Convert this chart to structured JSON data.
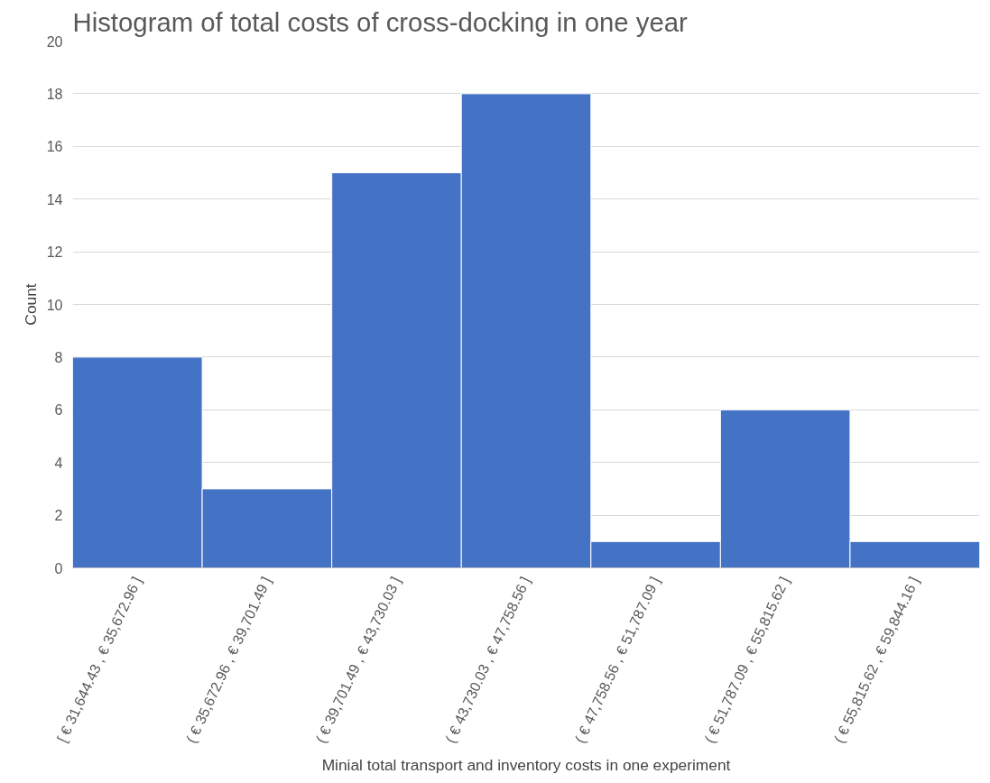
{
  "chart_data": {
    "type": "bar",
    "title": "Histogram of total costs of cross-docking in one year",
    "xlabel": "Minial total transport and inventory costs in one experiment",
    "ylabel": "Count",
    "categories": [
      "[ € 31,644.43 , € 35,672.96 ]",
      "( € 35,672.96 , € 39,701.49 ]",
      "( € 39,701.49 , € 43,730.03 ]",
      "( € 43,730.03 , € 47,758.56 ]",
      "( € 47,758.56 , € 51,787.09 ]",
      "( € 51,787.09 , € 55,815.62 ]",
      "( € 55,815.62 , € 59,844.16 ]"
    ],
    "values": [
      8,
      3,
      15,
      18,
      1,
      6,
      1
    ],
    "color": "#4472c4",
    "ylim": [
      0,
      20
    ],
    "yticks": [
      0,
      2,
      4,
      6,
      8,
      10,
      12,
      14,
      16,
      18,
      20
    ],
    "grid": "y"
  }
}
